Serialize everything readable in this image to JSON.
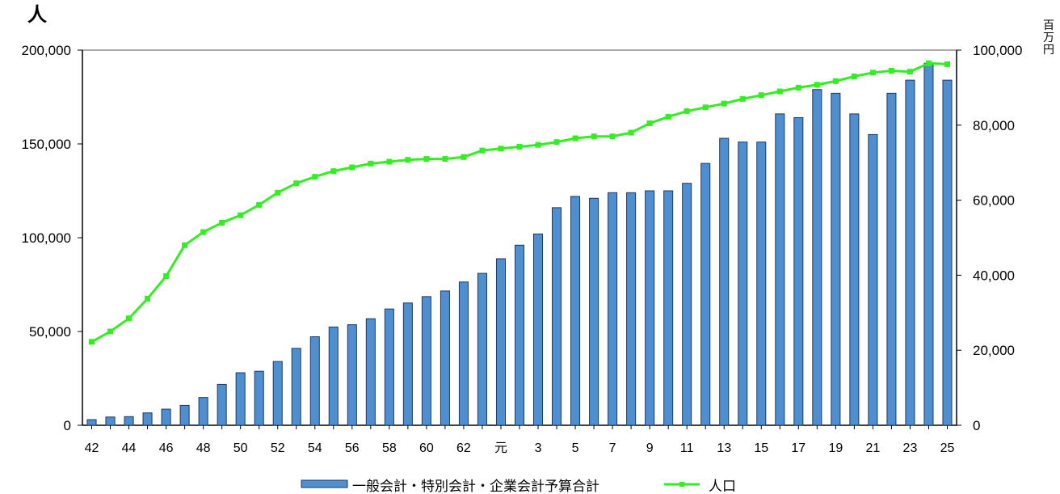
{
  "chart_data": {
    "type": "bar+line",
    "left_axis": {
      "unit_label": "人",
      "ylim": [
        0,
        200000
      ],
      "ticks": [
        "0",
        "50,000",
        "100,000",
        "150,000",
        "200,000"
      ]
    },
    "right_axis": {
      "unit_label": "百万円",
      "ylim": [
        0,
        100000
      ],
      "ticks": [
        "0",
        "20,000",
        "40,000",
        "60,000",
        "80,000",
        "100,000"
      ]
    },
    "x_labels": [
      "42",
      "",
      "44",
      "",
      "46",
      "",
      "48",
      "",
      "50",
      "",
      "52",
      "",
      "54",
      "",
      "56",
      "",
      "58",
      "",
      "60",
      "",
      "62",
      "",
      "元",
      "",
      "3",
      "",
      "5",
      "",
      "7",
      "",
      "9",
      "",
      "11",
      "",
      "13",
      "",
      "15",
      "",
      "17",
      "",
      "19",
      "",
      "21",
      "",
      "23",
      "",
      "25"
    ],
    "series": [
      {
        "name": "一般会計・特別会計・企業会計予算合計",
        "kind": "bar",
        "axis": "right",
        "color": "#4f8fcf",
        "values": [
          1500,
          2200,
          2300,
          3300,
          4300,
          5300,
          7400,
          10900,
          14000,
          14400,
          17000,
          20500,
          23600,
          26200,
          26800,
          28400,
          31000,
          32600,
          34300,
          35800,
          38200,
          40500,
          44400,
          48000,
          51000,
          58000,
          61000,
          60500,
          62000,
          62000,
          62500,
          62500,
          64500,
          69800,
          76500,
          75500,
          75500,
          83000,
          82000,
          89500,
          88500,
          83000,
          77500,
          88500,
          92000,
          96500,
          92000
        ]
      },
      {
        "name": "人口",
        "kind": "line",
        "axis": "left",
        "color": "#33ee22",
        "values": [
          44500,
          50000,
          57000,
          67500,
          79500,
          96000,
          103000,
          108000,
          112000,
          117500,
          124000,
          129000,
          132500,
          135500,
          137500,
          139500,
          140500,
          141500,
          142000,
          142000,
          143000,
          146500,
          147500,
          148500,
          149500,
          151000,
          153000,
          154000,
          154000,
          156000,
          161000,
          164500,
          167500,
          169500,
          171500,
          174000,
          176000,
          178000,
          180000,
          181500,
          183500,
          186000,
          188000,
          189000,
          188500,
          193000,
          192500
        ]
      }
    ],
    "grid": false
  }
}
